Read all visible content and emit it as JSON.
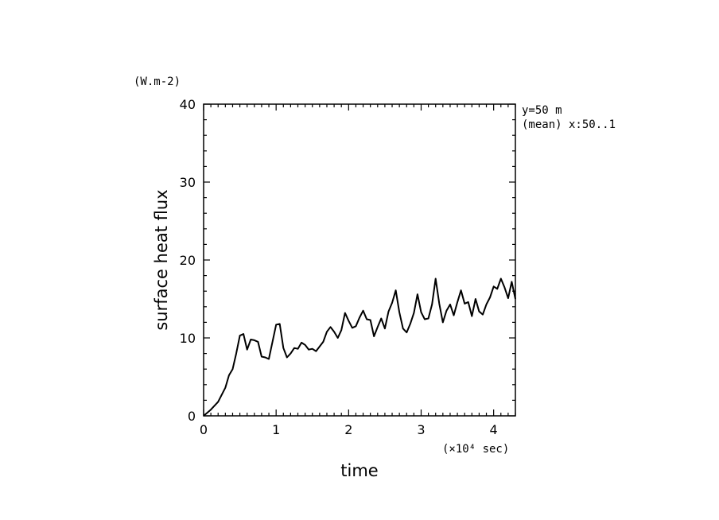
{
  "chart_data": {
    "type": "line",
    "xlabel": "time",
    "ylabel": "surface heat flux",
    "y_unit": "(W.m-2)",
    "x_unit": "(×10⁴ sec)",
    "annotations": [
      "y=50 m",
      "(mean) x:50..1"
    ],
    "xlim": [
      0,
      4.3
    ],
    "ylim": [
      0,
      40
    ],
    "x_ticks": [
      "0",
      "1",
      "2",
      "3",
      "4"
    ],
    "y_ticks": [
      "0",
      "10",
      "20",
      "30",
      "40"
    ],
    "grid": false,
    "series": [
      {
        "x": [
          0,
          0.1,
          0.2,
          0.3,
          0.35,
          0.4,
          0.45,
          0.5,
          0.55,
          0.6,
          0.65,
          0.7,
          0.75,
          0.8,
          0.85,
          0.9,
          0.95,
          1.0,
          1.05,
          1.1,
          1.15,
          1.2,
          1.25,
          1.3,
          1.35,
          1.4,
          1.45,
          1.5,
          1.55,
          1.6,
          1.65,
          1.7,
          1.75,
          1.8,
          1.85,
          1.9,
          1.95,
          2.0,
          2.05,
          2.1,
          2.15,
          2.2,
          2.25,
          2.3,
          2.35,
          2.4,
          2.45,
          2.5,
          2.55,
          2.6,
          2.65,
          2.7,
          2.75,
          2.8,
          2.85,
          2.9,
          2.95,
          3.0,
          3.05,
          3.1,
          3.15,
          3.2,
          3.25,
          3.3,
          3.35,
          3.4,
          3.45,
          3.5,
          3.55,
          3.6,
          3.65,
          3.7,
          3.75,
          3.8,
          3.85,
          3.9,
          3.95,
          4.0,
          4.05,
          4.1,
          4.15,
          4.2,
          4.25,
          4.3
        ],
        "values": [
          0,
          0.8,
          1.8,
          3.6,
          5.2,
          6.0,
          8.0,
          10.3,
          10.5,
          8.5,
          9.8,
          9.7,
          9.5,
          7.6,
          7.5,
          7.3,
          9.5,
          11.7,
          11.8,
          8.7,
          7.5,
          8.0,
          8.7,
          8.6,
          9.4,
          9.1,
          8.5,
          8.6,
          8.3,
          8.9,
          9.5,
          10.8,
          11.4,
          10.8,
          10.0,
          11.0,
          13.2,
          12.2,
          11.3,
          11.5,
          12.6,
          13.5,
          12.4,
          12.3,
          10.2,
          11.4,
          12.5,
          11.2,
          13.4,
          14.5,
          16.1,
          13.3,
          11.2,
          10.7,
          11.8,
          13.2,
          15.6,
          13.3,
          12.4,
          12.5,
          14.3,
          17.6,
          14.4,
          12.0,
          13.5,
          14.3,
          12.9,
          14.6,
          16.1,
          14.4,
          14.6,
          12.8,
          15.0,
          13.4,
          13.0,
          14.3,
          15.2,
          16.6,
          16.3,
          17.6,
          16.5,
          15.1,
          17.2,
          15.0
        ]
      }
    ]
  }
}
